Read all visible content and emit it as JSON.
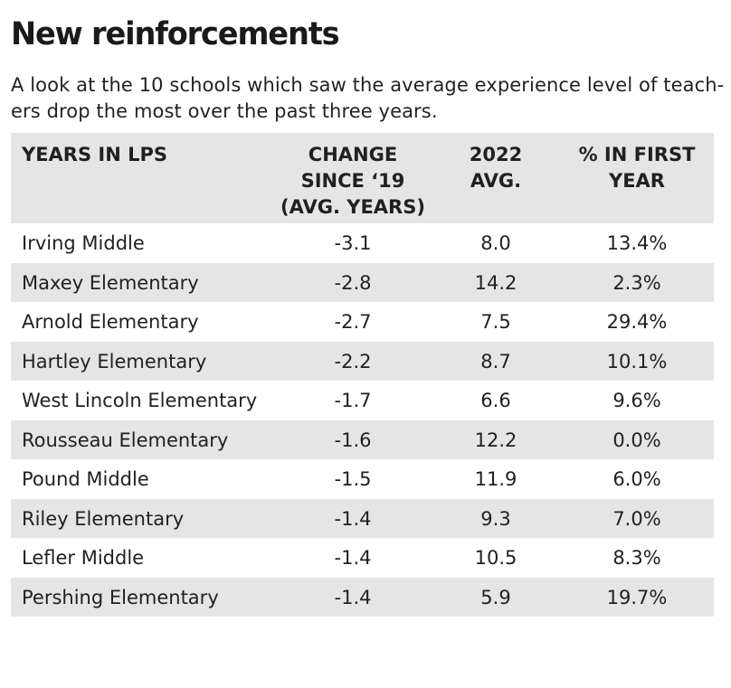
{
  "title": "New reinforcements",
  "subtitle": {
    "line1": "A look at the 10 schools which saw the average experience level of teach-",
    "line2": "ers drop the most over the past three years."
  },
  "chart_data": {
    "type": "table",
    "columns": [
      {
        "lines": [
          "YEARS IN LPS"
        ]
      },
      {
        "lines": [
          "CHANGE",
          "SINCE ‘19",
          "(AVG. YEARS)"
        ]
      },
      {
        "lines": [
          "2022",
          "AVG."
        ]
      },
      {
        "lines": [
          "% IN FIRST",
          "YEAR"
        ]
      }
    ],
    "rows": [
      [
        "Irving Middle",
        "-3.1",
        "8.0",
        "13.4%"
      ],
      [
        "Maxey Elementary",
        "-2.8",
        "14.2",
        "2.3%"
      ],
      [
        "Arnold Elementary",
        "-2.7",
        "7.5",
        "29.4%"
      ],
      [
        "Hartley Elementary",
        "-2.2",
        "8.7",
        "10.1%"
      ],
      [
        "West Lincoln Elementary",
        "-1.7",
        "6.6",
        "9.6%"
      ],
      [
        "Rousseau Elementary",
        "-1.6",
        "12.2",
        "0.0%"
      ],
      [
        "Pound Middle",
        "-1.5",
        "11.9",
        "6.0%"
      ],
      [
        "Riley Elementary",
        "-1.4",
        "9.3",
        "7.0%"
      ],
      [
        "Lefler Middle",
        "-1.4",
        "10.5",
        "8.3%"
      ],
      [
        "Pershing Elementary",
        "-1.4",
        "5.9",
        "19.7%"
      ]
    ]
  }
}
